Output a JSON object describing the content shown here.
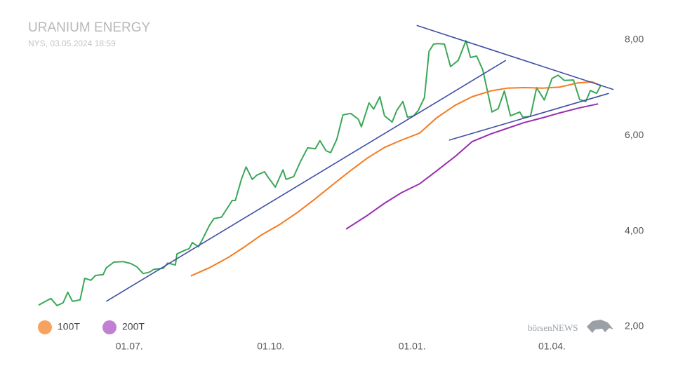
{
  "chart_data": {
    "type": "line",
    "title": "URANIUM ENERGY",
    "subtitle": "NYS, 03.05.2024 18:59",
    "watermark": "börsenNEWS",
    "xticks": [
      "01.07.",
      "01.10.",
      "01.01.",
      "01.04."
    ],
    "ylim": [
      2,
      8.5
    ],
    "yticks": [
      {
        "value": 2,
        "label": "2,00"
      },
      {
        "value": 4,
        "label": "4,00"
      },
      {
        "value": 6,
        "label": "6,00"
      },
      {
        "value": 8,
        "label": "8,00"
      }
    ],
    "series": [
      {
        "color": "#3aa857",
        "x": [
          "03.05.",
          "11.05.",
          "15.05.",
          "19.05.",
          "22.05.",
          "25.05.",
          "30.05.",
          "02.06.",
          "06.06.",
          "09.06.",
          "14.06.",
          "16.06.",
          "21.06.",
          "27.06.",
          "02.07.",
          "06.07.",
          "10.07.",
          "14.07.",
          "17.07.",
          "23.07.",
          "26.07.",
          "31.07.",
          "01.08.",
          "07.08.",
          "09.08.",
          "11.08.",
          "15.08.",
          "18.08.",
          "22.08.",
          "25.08.",
          "30.08.",
          "01.09.",
          "06.09.",
          "08.09.",
          "12.09.",
          "15.09.",
          "19.09.",
          "22.09.",
          "27.09.",
          "29.09.",
          "04.10.",
          "09.10.",
          "11.10.",
          "16.10.",
          "20.10.",
          "25.10.",
          "30.10.",
          "02.11.",
          "06.11.",
          "09.11.",
          "13.11.",
          "17.11.",
          "22.11.",
          "27.11.",
          "29.11.",
          "04.12.",
          "07.12.",
          "11.12.",
          "14.12.",
          "19.12.",
          "22.12.",
          "26.12.",
          "29.12.",
          "02.01.",
          "05.01.",
          "09.01.",
          "12.01.",
          "15.01.",
          "18.01.",
          "22.01.",
          "26.01.",
          "31.01.",
          "05.02.",
          "08.02.",
          "12.02.",
          "16.02.",
          "22.02.",
          "26.02.",
          "01.03.",
          "05.03.",
          "11.03.",
          "13.03.",
          "18.03.",
          "22.03.",
          "27.03.",
          "01.04.",
          "05.04.",
          "09.04.",
          "15.04.",
          "19.04.",
          "23.04.",
          "26.04.",
          "30.04.",
          "03.05."
        ],
        "values": [
          2.45,
          2.59,
          2.44,
          2.5,
          2.72,
          2.53,
          2.56,
          3.01,
          2.97,
          3.07,
          3.09,
          3.23,
          3.35,
          3.36,
          3.32,
          3.25,
          3.11,
          3.14,
          3.2,
          3.22,
          3.33,
          3.29,
          3.52,
          3.61,
          3.63,
          3.76,
          3.67,
          3.85,
          4.11,
          4.26,
          4.29,
          4.39,
          4.64,
          4.64,
          5.09,
          5.34,
          5.08,
          5.17,
          5.24,
          5.14,
          4.92,
          5.28,
          5.08,
          5.14,
          5.43,
          5.74,
          5.72,
          5.89,
          5.68,
          5.64,
          5.92,
          6.43,
          6.46,
          6.34,
          6.18,
          6.68,
          6.55,
          6.81,
          6.41,
          6.28,
          6.52,
          6.71,
          6.38,
          6.41,
          6.52,
          6.79,
          7.76,
          7.91,
          7.92,
          7.91,
          7.44,
          7.57,
          7.98,
          7.63,
          7.66,
          7.37,
          6.49,
          6.56,
          6.93,
          6.41,
          6.49,
          6.38,
          6.4,
          7.0,
          6.74,
          7.19,
          7.26,
          7.15,
          7.16,
          6.75,
          6.71,
          6.94,
          6.88,
          7.06
        ]
      },
      {
        "name": "100T",
        "color": "#f47b20",
        "marker_color": "#f7a35f",
        "x": [
          "10.08.",
          "22.08.",
          "03.09.",
          "14.09.",
          "25.09.",
          "07.10.",
          "18.10.",
          "29.10.",
          "10.11.",
          "21.11.",
          "03.12.",
          "14.12.",
          "25.12.",
          "06.01.",
          "17.01.",
          "29.01.",
          "09.02.",
          "21.02.",
          "03.03.",
          "14.03.",
          "26.03.",
          "06.04.",
          "18.04.",
          "27.04.",
          "03.05."
        ],
        "values": [
          3.06,
          3.23,
          3.44,
          3.67,
          3.92,
          4.14,
          4.38,
          4.65,
          4.96,
          5.24,
          5.53,
          5.75,
          5.9,
          6.05,
          6.37,
          6.63,
          6.81,
          6.93,
          6.99,
          7.0,
          6.99,
          7.01,
          7.1,
          7.12,
          7.04
        ]
      },
      {
        "name": "200T",
        "color": "#9b2db0",
        "marker_color": "#c37fd3",
        "x": [
          "19.11.",
          "03.12.",
          "14.12.",
          "25.12.",
          "06.01.",
          "17.01.",
          "29.01.",
          "09.02.",
          "21.02.",
          "03.03.",
          "14.03.",
          "26.03.",
          "06.04.",
          "18.04.",
          "01.05."
        ],
        "values": [
          4.04,
          4.33,
          4.58,
          4.8,
          4.99,
          5.26,
          5.56,
          5.87,
          6.03,
          6.15,
          6.27,
          6.37,
          6.47,
          6.57,
          6.66
        ]
      }
    ],
    "trendlines": {
      "color": "#3f4ea6",
      "lines": [
        {
          "x": [
            "16.06.",
            "02.03."
          ],
          "values": [
            2.53,
            7.57
          ]
        },
        {
          "x": [
            "04.01.",
            "11.05."
          ],
          "values": [
            8.3,
            6.96
          ]
        },
        {
          "x": [
            "25.01.",
            "08.05."
          ],
          "values": [
            5.9,
            6.88
          ]
        }
      ]
    }
  }
}
